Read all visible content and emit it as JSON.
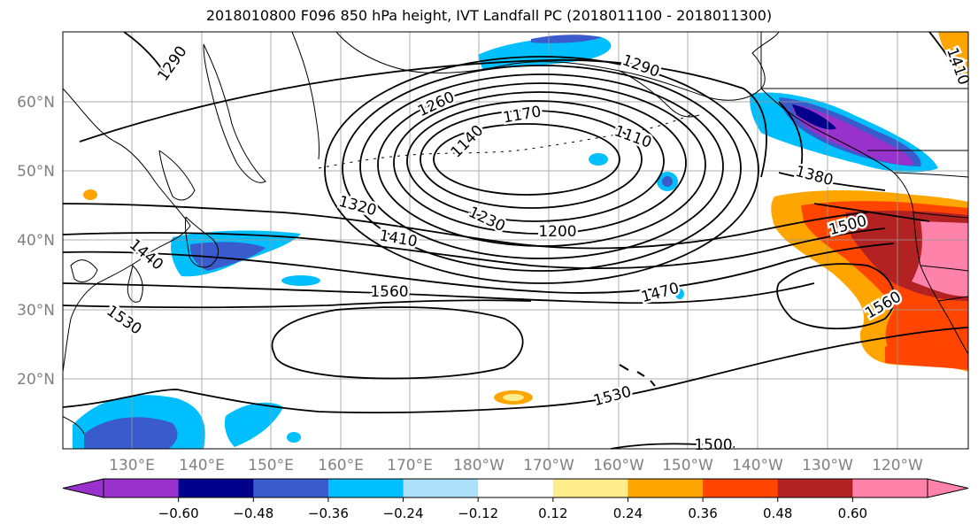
{
  "title": "2018010800 F096 850 hPa height, IVT Landfall PC (2018011100 - 2018011300)",
  "lon_labels": [
    "130°E",
    "140°E",
    "150°E",
    "160°E",
    "170°E",
    "180°W",
    "170°W",
    "160°W",
    "150°W",
    "140°W",
    "130°W",
    "120°W"
  ],
  "lat_labels": [
    "60°N",
    "50°N",
    "40°N",
    "30°N",
    "20°N"
  ],
  "contour_labels": [
    "1290",
    "1290",
    "1260",
    "1170",
    "1140",
    "1110",
    "1320",
    "1230",
    "1200",
    "1380",
    "1410",
    "1440",
    "1500",
    "1560",
    "1470",
    "1530",
    "1560",
    "1530",
    "1500",
    "1410"
  ],
  "colorbar": {
    "colors": [
      "#9932CC",
      "#00008B",
      "#3A5BCB",
      "#00BFFF",
      "#ADE1FB",
      "#FFFFFF",
      "#FFEC8B",
      "#FFA500",
      "#FF4500",
      "#B22222",
      "#FF82AB"
    ],
    "tick_labels": [
      "−0.60",
      "−0.48",
      "−0.36",
      "−0.24",
      "−0.12",
      "0.12",
      "0.24",
      "0.36",
      "0.48",
      "0.60"
    ]
  }
}
